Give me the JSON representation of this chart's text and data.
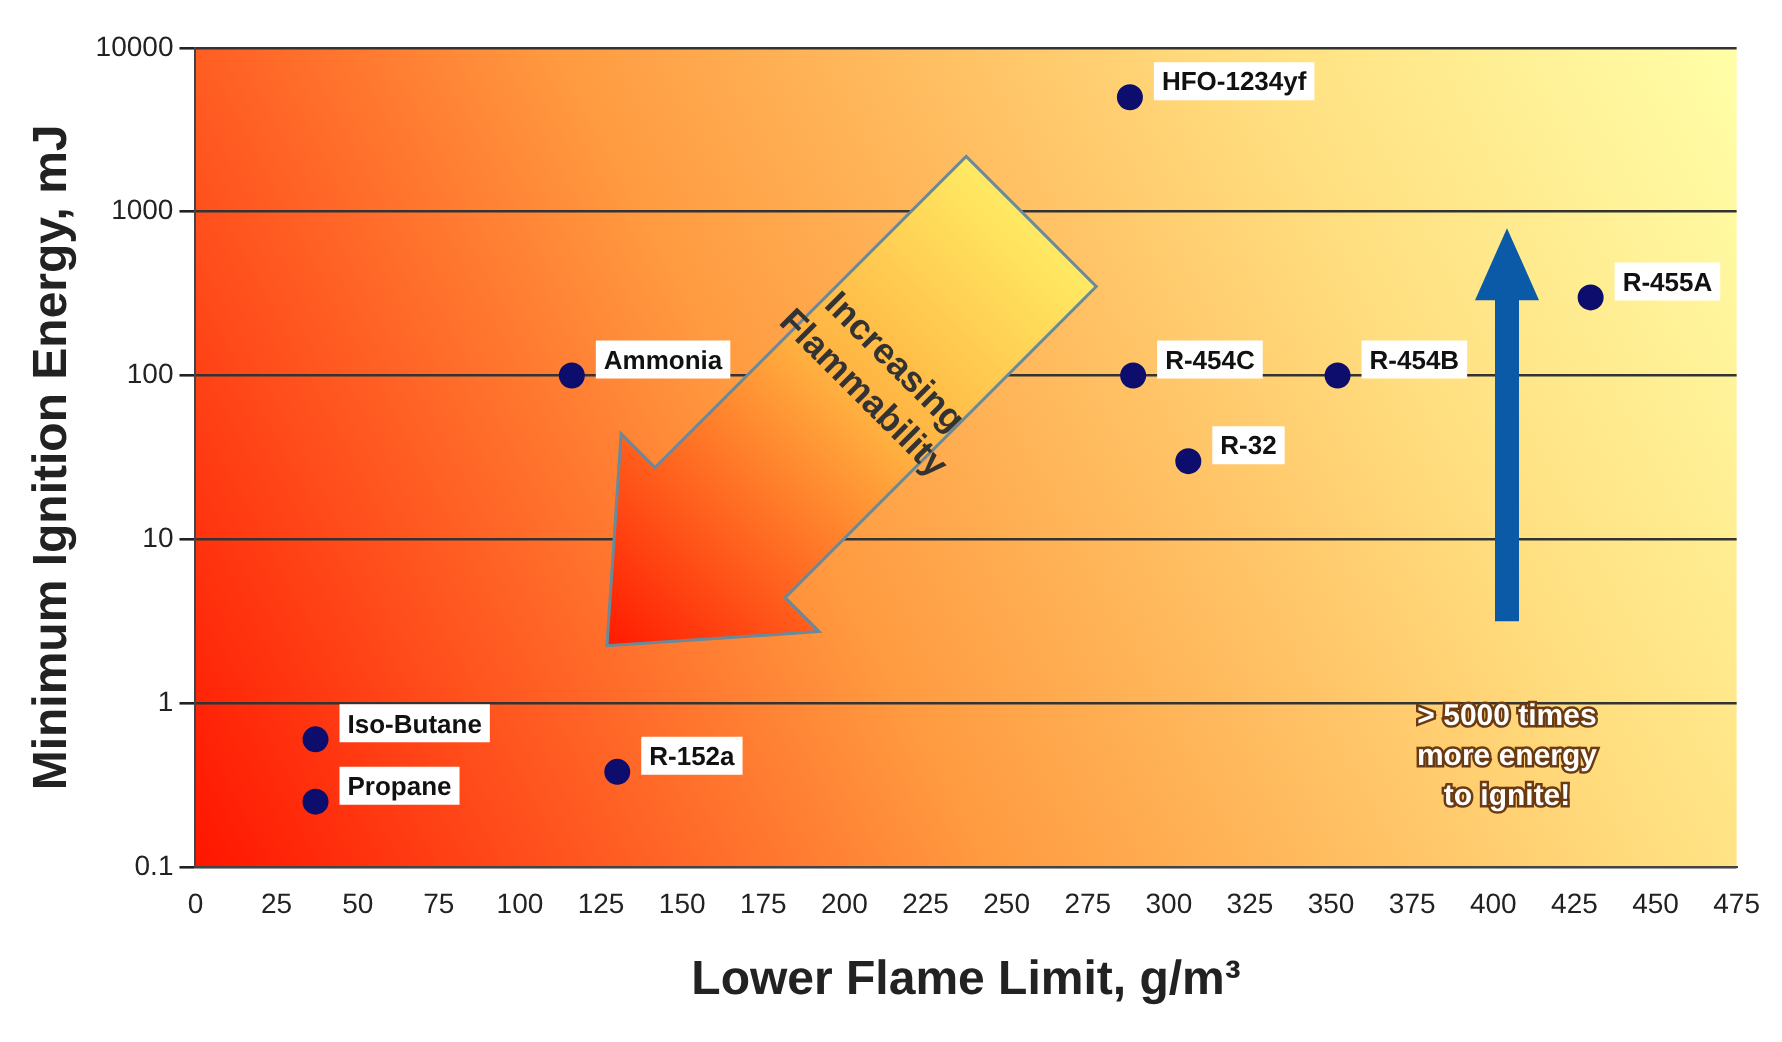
{
  "chart_data": {
    "type": "scatter",
    "xlabel": "Lower Flame Limit, g/m³",
    "ylabel": "Minimum Ignition Energy, mJ",
    "x": [
      37,
      37,
      130,
      116,
      288,
      289,
      306,
      352,
      430
    ],
    "values": [
      0.6,
      0.25,
      0.38,
      100,
      5000,
      100,
      30,
      100,
      300
    ],
    "color": "#0d0d6e",
    "marker": "circle",
    "log": "y",
    "grid": "y",
    "legend": false,
    "xlim": [
      0,
      475
    ],
    "xticks": [
      0,
      25,
      50,
      75,
      100,
      125,
      150,
      175,
      200,
      225,
      250,
      275,
      300,
      325,
      350,
      375,
      400,
      425,
      450,
      475
    ],
    "ylim": [
      0.1,
      10000
    ],
    "yticks": [
      0.1,
      1,
      10,
      100,
      1000,
      10000
    ],
    "annotations": [
      {
        "text": "Iso-Butane",
        "x": 37,
        "y": 0.6
      },
      {
        "text": "Propane",
        "x": 37,
        "y": 0.25
      },
      {
        "text": "R-152a",
        "x": 130,
        "y": 0.38
      },
      {
        "text": "Ammonia",
        "x": 116,
        "y": 100
      },
      {
        "text": "HFO-1234yf",
        "x": 288,
        "y": 5000
      },
      {
        "text": "R-454C",
        "x": 289,
        "y": 100
      },
      {
        "text": "R-32",
        "x": 306,
        "y": 30
      },
      {
        "text": "R-454B",
        "x": 352,
        "y": 100
      },
      {
        "text": "R-455A",
        "x": 430,
        "y": 300
      },
      "Increasing Flammability",
      "> 5000 times more energy to ignite!"
    ]
  }
}
